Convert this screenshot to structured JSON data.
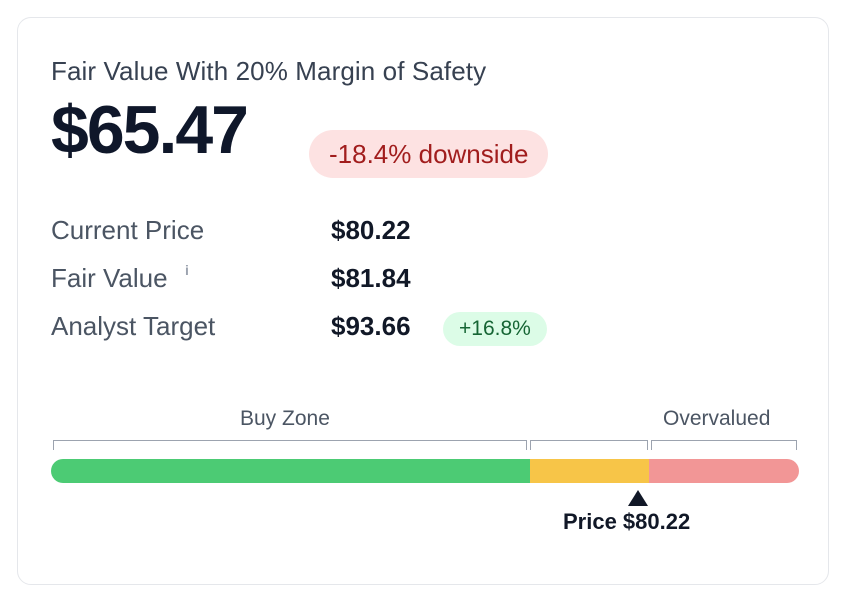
{
  "card": {
    "title": "Fair Value With 20% Margin of Safety",
    "fair_value_mos": "$65.47",
    "downside_badge": "-18.4% downside"
  },
  "metrics": {
    "current_price_label": "Current Price",
    "current_price_value": "$80.22",
    "fair_value_label": "Fair Value",
    "fair_value_info_icon": "i",
    "fair_value_value": "$81.84",
    "analyst_target_label": "Analyst Target",
    "analyst_target_value": "$93.66",
    "analyst_target_badge": "+16.8%"
  },
  "valuation_bar": {
    "buy_zone_label": "Buy Zone",
    "overvalued_label": "Overvalued",
    "price_label": "Price $80.22",
    "segments": [
      {
        "zone": "buy",
        "fraction": 0.64,
        "color": "#4ccb74"
      },
      {
        "zone": "fair",
        "fraction": 0.16,
        "color": "#f7c548"
      },
      {
        "zone": "overvalued",
        "fraction": 0.2,
        "color": "#f29696"
      }
    ],
    "price_position_fraction": 0.789
  },
  "colors": {
    "downside_bg": "#fde2e2",
    "downside_text": "#a11d1d",
    "upside_bg": "#dcfce7",
    "upside_text": "#166534"
  }
}
